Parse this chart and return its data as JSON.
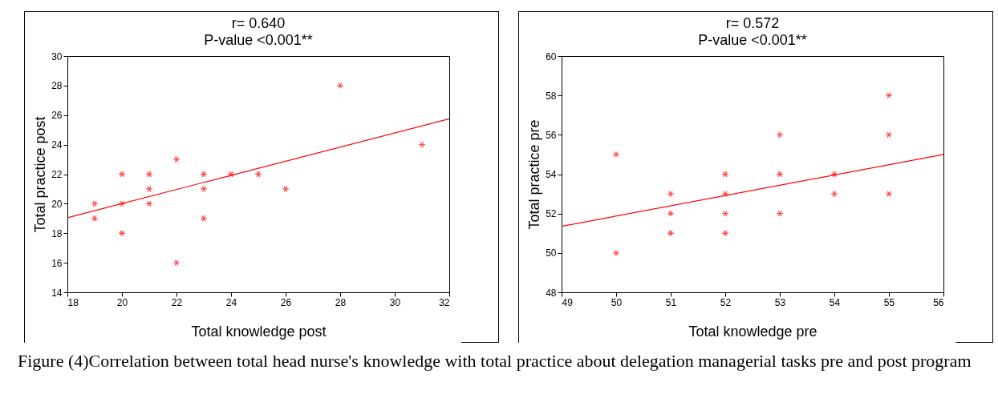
{
  "chart_data": [
    {
      "type": "scatter",
      "title": "r= 0.640",
      "subtitle": "P-value <0.001**",
      "xlabel": "Total knowledge post",
      "ylabel": "Total practice post",
      "xlim": [
        18,
        32
      ],
      "xticks": [
        18,
        20,
        22,
        24,
        26,
        28,
        30,
        32
      ],
      "ylim": [
        14,
        30
      ],
      "yticks": [
        14,
        16,
        18,
        20,
        22,
        24,
        26,
        28,
        30
      ],
      "grid": false,
      "series": [
        {
          "marker": "cross",
          "color": "#ff0000",
          "x": [
            19,
            19,
            20,
            20,
            20,
            21,
            21,
            21,
            22,
            22,
            23,
            23,
            23,
            24,
            25,
            26,
            28,
            31
          ],
          "values": [
            20,
            19,
            22,
            20,
            18,
            22,
            21,
            20,
            23,
            16,
            22,
            21,
            19,
            22,
            22,
            21,
            28,
            24
          ]
        },
        {
          "type": "line",
          "color": "#ff0000",
          "x": [
            18,
            32
          ],
          "values": [
            19.05,
            25.75
          ]
        }
      ]
    },
    {
      "type": "scatter",
      "title": "r= 0.572",
      "subtitle": "P-value <0.001**",
      "xlabel": "Total knowledge pre",
      "ylabel": "Total practice pre",
      "xlim": [
        49,
        56
      ],
      "xticks": [
        49,
        50,
        51,
        52,
        53,
        54,
        55,
        56
      ],
      "ylim": [
        48,
        60
      ],
      "yticks": [
        48,
        50,
        52,
        54,
        56,
        58,
        60
      ],
      "grid": false,
      "annotations": [
        "Figure (4)Correlation between total head nurse's knowledge with total practice about delegation managerial tasks pre and post program"
      ],
      "series": [
        {
          "marker": "cross",
          "color": "#ff0000",
          "x": [
            50,
            50,
            51,
            51,
            51,
            52,
            52,
            52,
            52,
            53,
            53,
            53,
            54,
            54,
            55,
            55,
            55
          ],
          "values": [
            55,
            50,
            53,
            52,
            51,
            54,
            53,
            52,
            51,
            56,
            54,
            52,
            54,
            53,
            58,
            56,
            53
          ]
        },
        {
          "type": "line",
          "color": "#ff0000",
          "x": [
            49,
            56
          ],
          "values": [
            51.35,
            55.0
          ]
        }
      ]
    }
  ]
}
